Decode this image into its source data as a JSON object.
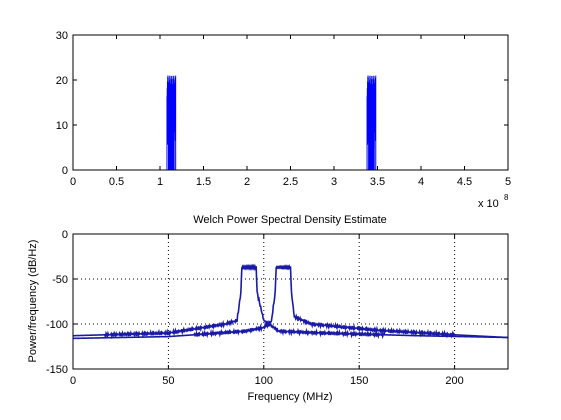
{
  "chart_data": [
    {
      "type": "line",
      "title": "",
      "xlabel": "",
      "ylabel": "",
      "xlim": [
        0,
        5
      ],
      "ylim": [
        0,
        30
      ],
      "xticks": [
        "0",
        "0.5",
        "1",
        "1.5",
        "2",
        "2.5",
        "3",
        "3.5",
        "4",
        "4.5",
        "5"
      ],
      "yticks": [
        "0",
        "10",
        "20",
        "30"
      ],
      "x_exponent_base": "x 10",
      "x_exponent_power": "8",
      "grid": false,
      "line_color": "#0000ff",
      "series": [
        {
          "peaks": [
            {
              "center": 1.13,
              "width": 0.1,
              "height": 21
            },
            {
              "center": 3.43,
              "width": 0.1,
              "height": 21
            }
          ]
        }
      ]
    },
    {
      "type": "line",
      "title": "Welch Power Spectral Density Estimate",
      "xlabel": "Frequency (MHz)",
      "ylabel": "Power/frequency (dB/Hz)",
      "xlim": [
        0,
        228
      ],
      "ylim": [
        -150,
        0
      ],
      "xticks": [
        "0",
        "50",
        "100",
        "150",
        "200"
      ],
      "yticks": [
        "0",
        "-50",
        "-100",
        "-150"
      ],
      "grid": true,
      "line_color": "#1a1aa8",
      "series": [
        {
          "x": [
            0,
            50,
            80,
            86,
            88,
            88.5,
            96,
            96.5,
            100,
            108,
            130,
            180,
            228
          ],
          "y": [
            -113,
            -110,
            -100,
            -96,
            -65,
            -37,
            -37,
            -65,
            -96,
            -108,
            -110,
            -113,
            -115
          ]
        },
        {
          "x": [
            0,
            50,
            90,
            100,
            104,
            106,
            106.5,
            114,
            114.5,
            116,
            125,
            160,
            200,
            228
          ],
          "y": [
            -116,
            -114,
            -108,
            -104,
            -97,
            -65,
            -37,
            -37,
            -65,
            -92,
            -100,
            -107,
            -112,
            -115
          ]
        }
      ]
    }
  ]
}
